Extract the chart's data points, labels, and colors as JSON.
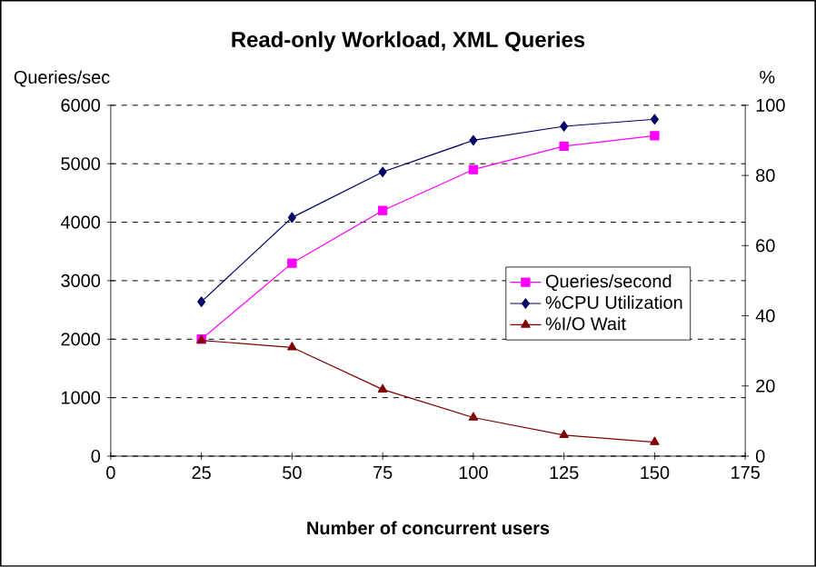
{
  "chart_data": {
    "type": "line",
    "title": "Read-only Workload, XML Queries",
    "xlabel": "Number of concurrent users",
    "ylabel": "Queries/sec",
    "y2label": "%",
    "x": [
      25,
      50,
      75,
      100,
      125,
      150
    ],
    "series": [
      {
        "name": "Queries/second",
        "color": "#ff00ff",
        "marker": "square",
        "values": [
          2000,
          3300,
          4200,
          4900,
          5300,
          5480
        ]
      },
      {
        "name": "%CPU Utilization",
        "color": "#000066",
        "marker": "diamond",
        "axis": "y2",
        "values": [
          44,
          68,
          81,
          90,
          94,
          96
        ]
      },
      {
        "name": "%I/O Wait",
        "color": "#800000",
        "marker": "triangle",
        "axis": "y2",
        "values": [
          33,
          31,
          19,
          11,
          6,
          4
        ]
      }
    ],
    "xlim": [
      0,
      175
    ],
    "xticks": [
      0,
      25,
      50,
      75,
      100,
      125,
      150,
      175
    ],
    "ylim": [
      0,
      6000
    ],
    "yticks": [
      0,
      1000,
      2000,
      3000,
      4000,
      5000,
      6000
    ],
    "y2lim": [
      0,
      100
    ],
    "y2ticks": [
      0,
      20,
      40,
      60,
      80,
      100
    ],
    "grid": "y",
    "legend": "right",
    "line_style": "solid"
  }
}
